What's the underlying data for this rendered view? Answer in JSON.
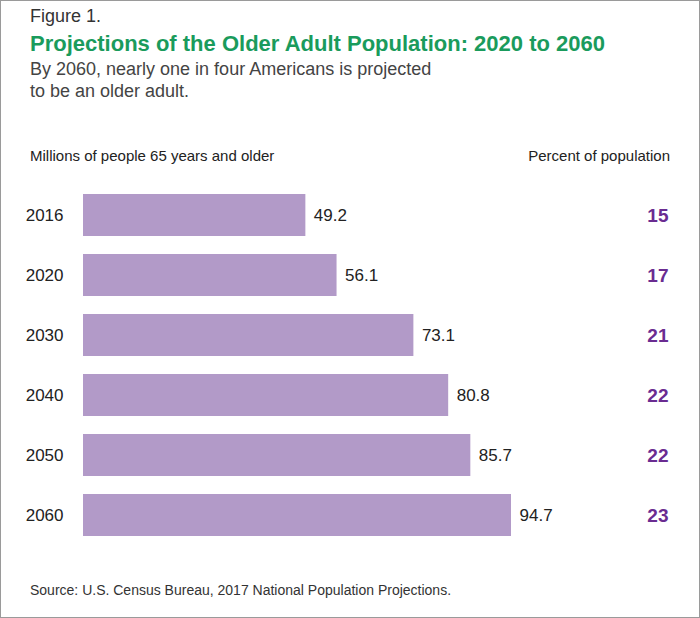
{
  "chart_data": {
    "type": "bar",
    "orientation": "horizontal",
    "figure_label": "Figure 1.",
    "title": "Projections of the Older Adult Population: 2020 to 2060",
    "subtitle": "By 2060, nearly one in four Americans is projected to be an older adult.",
    "x_label": "Millions of people 65 years and older",
    "percent_label": "Percent of population",
    "categories": [
      "2016",
      "2020",
      "2030",
      "2040",
      "2050",
      "2060"
    ],
    "values": [
      49.2,
      56.1,
      73.1,
      80.8,
      85.7,
      94.7
    ],
    "percent_of_population": [
      15,
      17,
      21,
      22,
      22,
      23
    ],
    "color": "#b29ac8",
    "percent_color": "#6a2c91",
    "data_labels": true,
    "tick_labels": "y",
    "grid": false,
    "source": "Source: U.S. Census Bureau, 2017 National Population Projections."
  }
}
